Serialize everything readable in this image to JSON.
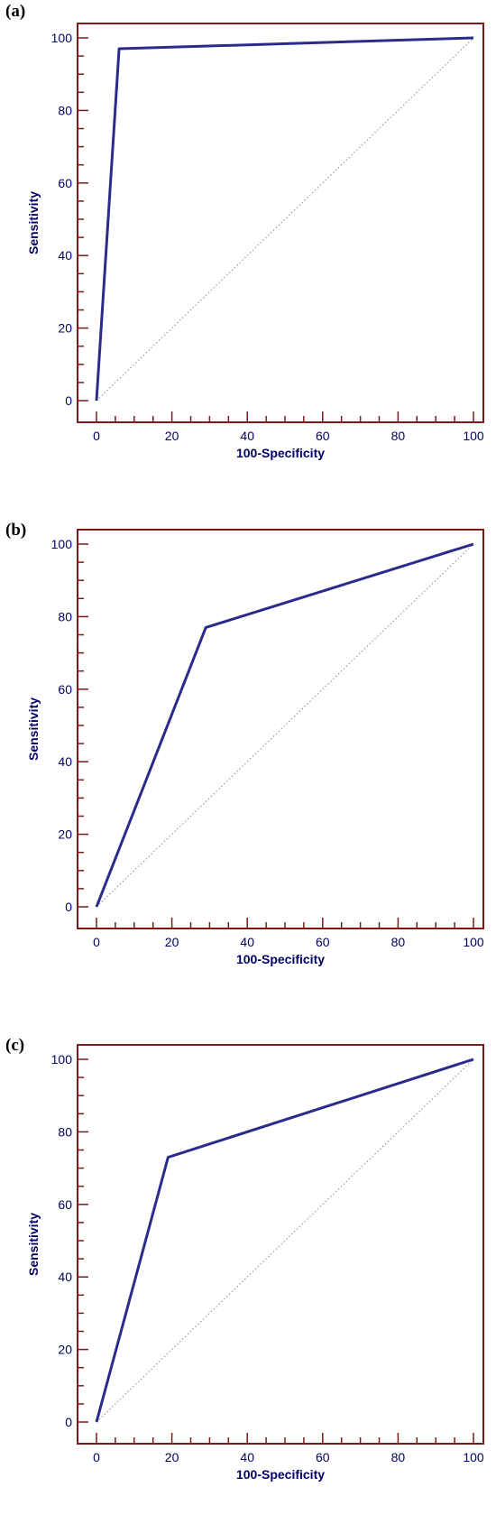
{
  "chart_data": [
    {
      "type": "line",
      "panel_label": "(a)",
      "xlabel": "100-Specificity",
      "ylabel": "Sensitivity",
      "xlim": [
        0,
        100
      ],
      "ylim": [
        0,
        100
      ],
      "xticks": [
        "0",
        "20",
        "40",
        "60",
        "80",
        "100"
      ],
      "yticks": [
        "0",
        "20",
        "40",
        "60",
        "80",
        "100"
      ],
      "series": [
        {
          "x": [
            0,
            6,
            100
          ],
          "y": [
            0,
            97,
            100
          ]
        }
      ],
      "reference_line": {
        "x": [
          0,
          100
        ],
        "y": [
          0,
          100
        ]
      }
    },
    {
      "type": "line",
      "panel_label": "(b)",
      "xlabel": "100-Specificity",
      "ylabel": "Sensitivity",
      "xlim": [
        0,
        100
      ],
      "ylim": [
        0,
        100
      ],
      "xticks": [
        "0",
        "20",
        "40",
        "60",
        "80",
        "100"
      ],
      "yticks": [
        "0",
        "20",
        "40",
        "60",
        "80",
        "100"
      ],
      "series": [
        {
          "x": [
            0,
            29,
            100
          ],
          "y": [
            0,
            77,
            100
          ]
        }
      ],
      "reference_line": {
        "x": [
          0,
          100
        ],
        "y": [
          0,
          100
        ]
      }
    },
    {
      "type": "line",
      "panel_label": "(c)",
      "xlabel": "100-Specificity",
      "ylabel": "Sensitivity",
      "xlim": [
        0,
        100
      ],
      "ylim": [
        0,
        100
      ],
      "xticks": [
        "0",
        "20",
        "40",
        "60",
        "80",
        "100"
      ],
      "yticks": [
        "0",
        "20",
        "40",
        "60",
        "80",
        "100"
      ],
      "series": [
        {
          "x": [
            0,
            19,
            100
          ],
          "y": [
            0,
            73,
            100
          ]
        }
      ],
      "reference_line": {
        "x": [
          0,
          100
        ],
        "y": [
          0,
          100
        ]
      }
    }
  ],
  "colors": {
    "frame": "#7a1a1a",
    "curve": "#2b2b8c",
    "text": "#000066",
    "reference": "#888888"
  }
}
